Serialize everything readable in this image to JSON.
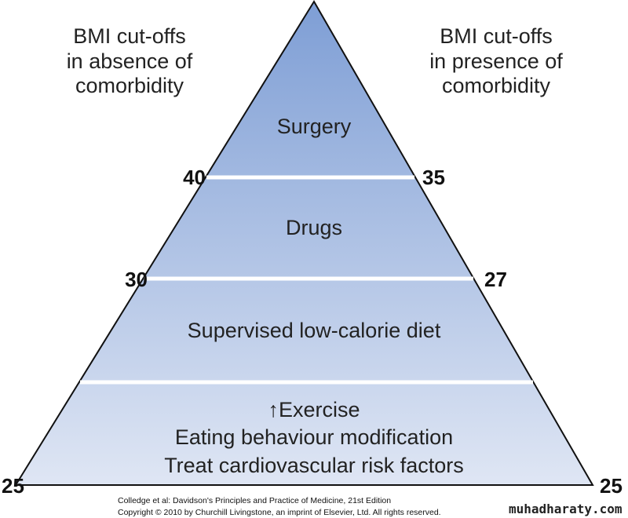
{
  "left_heading": [
    "BMI cut-offs",
    "in absence of",
    "comorbidity"
  ],
  "right_heading": [
    "BMI cut-offs",
    "in presence of",
    "comorbidity"
  ],
  "tiers": [
    {
      "lines": [
        "Surgery"
      ]
    },
    {
      "lines": [
        "Drugs"
      ]
    },
    {
      "lines": [
        "Supervised low-calorie diet"
      ]
    },
    {
      "lines": [
        "↑Exercise",
        "Eating behaviour modification",
        "Treat cardiovascular risk factors"
      ]
    }
  ],
  "left_cutoffs": [
    40,
    30,
    25
  ],
  "right_cutoffs": [
    35,
    27,
    25
  ],
  "citation": [
    "Colledge et al: Davidson's Principles and Practice of Medicine, 21st Edition",
    "Copyright © 2010 by Churchill Livingstone, an imprint of Elsevier, Ltd. All rights reserved."
  ],
  "watermark": "muhadharaty.com"
}
